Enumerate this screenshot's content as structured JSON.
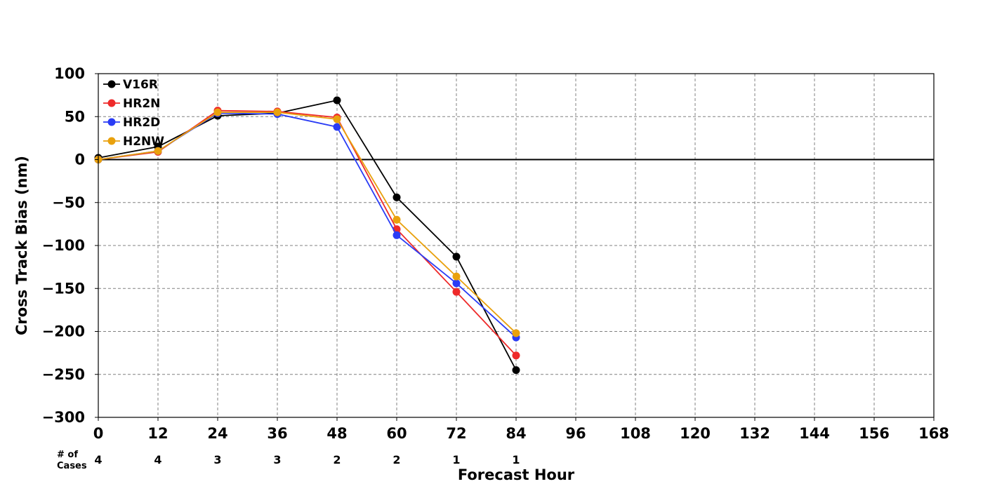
{
  "chart_data": {
    "type": "line",
    "xlabel": "Forecast Hour",
    "ylabel": "Cross Track Bias (nm)",
    "xlim": [
      0,
      168
    ],
    "ylim": [
      -300,
      100
    ],
    "xticks": [
      0,
      12,
      24,
      36,
      48,
      60,
      72,
      84,
      96,
      108,
      120,
      132,
      144,
      156,
      168
    ],
    "yticks": [
      100,
      50,
      0,
      -50,
      -100,
      -150,
      -200,
      -250,
      -300
    ],
    "ytick_labels": [
      "100",
      "50",
      "0",
      "−50",
      "−100",
      "−150",
      "−200",
      "−250",
      "−300"
    ],
    "grid": true,
    "legend_position": "top-left",
    "cases_header": [
      "# of",
      "Cases"
    ],
    "cases": [
      {
        "x": 0,
        "n": "4"
      },
      {
        "x": 12,
        "n": "4"
      },
      {
        "x": 24,
        "n": "3"
      },
      {
        "x": 36,
        "n": "3"
      },
      {
        "x": 48,
        "n": "2"
      },
      {
        "x": 60,
        "n": "2"
      },
      {
        "x": 72,
        "n": "1"
      },
      {
        "x": 84,
        "n": "1"
      }
    ],
    "series": [
      {
        "name": "V16R",
        "color": "#000000",
        "x": [
          0,
          12,
          24,
          36,
          48,
          60,
          72,
          84
        ],
        "y": [
          2,
          15,
          51,
          54,
          69,
          -44,
          -113,
          -245
        ]
      },
      {
        "name": "HR2N",
        "color": "#ee2a2a",
        "x": [
          0,
          12,
          24,
          36,
          48,
          60,
          72,
          84
        ],
        "y": [
          0,
          9,
          57,
          56,
          49,
          -81,
          -154,
          -228
        ]
      },
      {
        "name": "HR2D",
        "color": "#2a3cf5",
        "x": [
          0,
          12,
          24,
          36,
          48,
          60,
          72,
          84
        ],
        "y": [
          0,
          10,
          54,
          53,
          38,
          -88,
          -144,
          -207
        ]
      },
      {
        "name": "H2NW",
        "color": "#e9a10d",
        "x": [
          0,
          12,
          24,
          36,
          48,
          60,
          72,
          84
        ],
        "y": [
          0,
          10,
          55,
          55,
          47,
          -70,
          -136,
          -202
        ]
      }
    ]
  }
}
